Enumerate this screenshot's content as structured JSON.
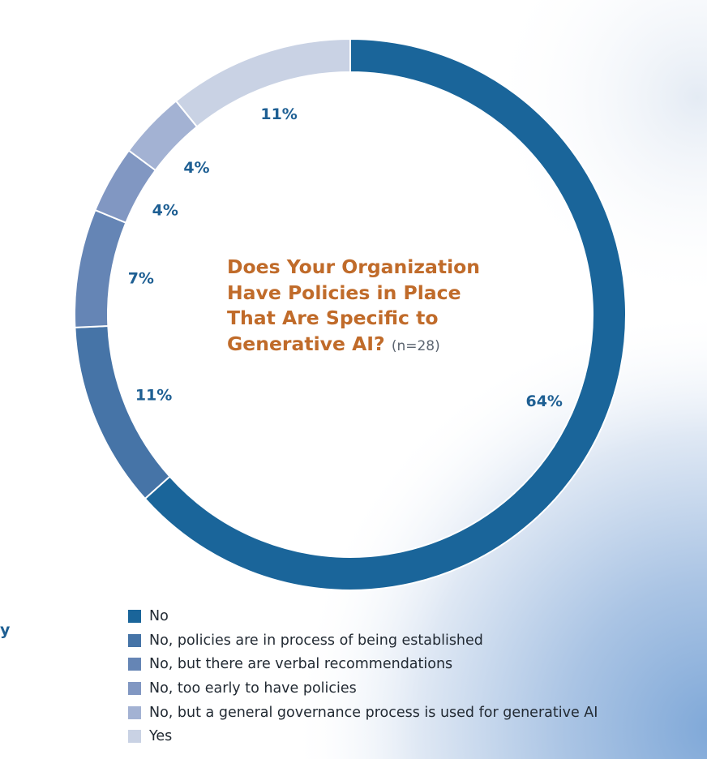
{
  "chart_data": {
    "type": "pie",
    "title": "Does Your Organization Have Policies in Place That Are Specific to Generative AI?",
    "sample_note": "(n=28)",
    "categories": [
      "No",
      "No, policies are in process of being established",
      "No, but there are verbal recommendations",
      "No, too early to have policies",
      "No, but a general governance process is used for generative AI",
      "Yes"
    ],
    "values": [
      64,
      11,
      7,
      4,
      4,
      11
    ],
    "value_labels": [
      "64%",
      "11%",
      "7%",
      "4%",
      "4%",
      "11%"
    ],
    "colors": [
      "#1a659a",
      "#4674a7",
      "#6585b5",
      "#8197c2",
      "#a3b2d3",
      "#c9d2e4"
    ],
    "style": "donut",
    "start": "12 o'clock, clockwise",
    "legend_position": "bottom"
  },
  "stray_text": "y"
}
